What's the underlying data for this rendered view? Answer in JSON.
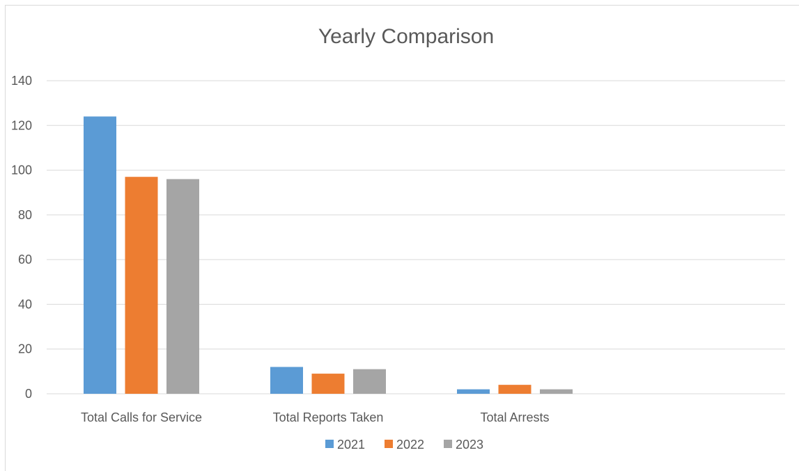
{
  "chart_data": {
    "type": "bar",
    "title": "Yearly Comparison",
    "xlabel": "",
    "ylabel": "",
    "categories": [
      "Total Calls for Service",
      "Total Reports Taken",
      "Total Arrests"
    ],
    "series": [
      {
        "name": "2021",
        "color": "#5b9bd5",
        "values": [
          124,
          12,
          2
        ]
      },
      {
        "name": "2022",
        "color": "#ed7d31",
        "values": [
          97,
          9,
          4
        ]
      },
      {
        "name": "2023",
        "color": "#a5a5a5",
        "values": [
          96,
          11,
          2
        ]
      }
    ],
    "ylim": [
      0,
      140
    ],
    "yticks": [
      0,
      20,
      40,
      60,
      80,
      100,
      120,
      140
    ],
    "grid": true,
    "legend": "bottom",
    "colors": {
      "grid": "#d9d9d9",
      "text": "#595959"
    }
  }
}
